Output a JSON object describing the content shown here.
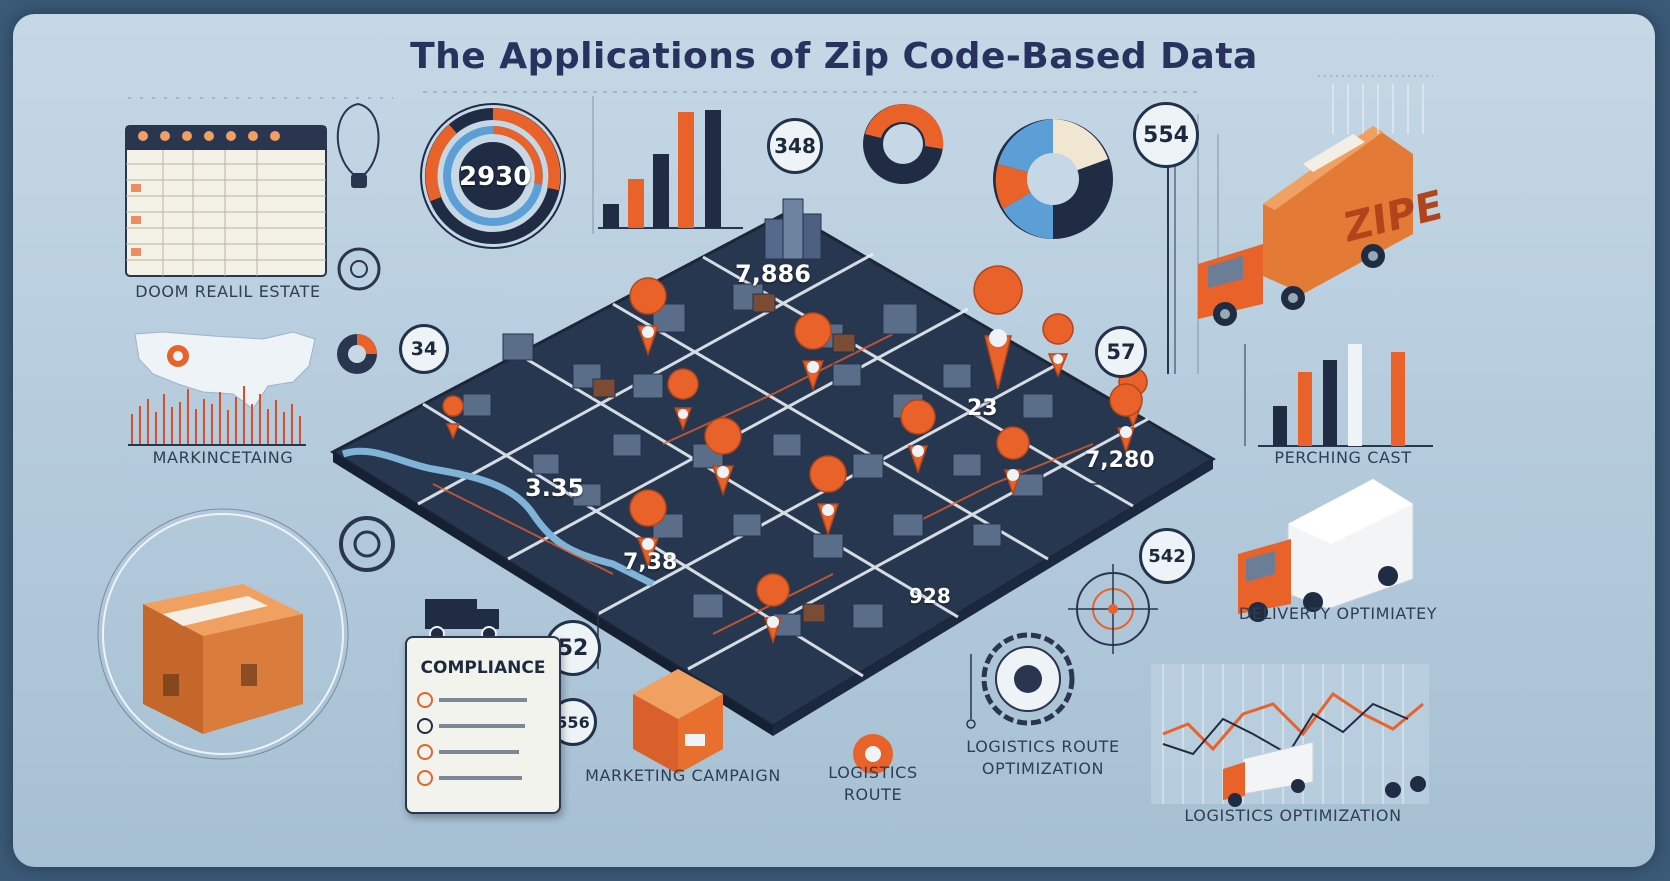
{
  "title": "The Applications of Zip Code-Based Data",
  "labels": {
    "real_estate": "DOOM REALIL ESTATE",
    "marketing": "MARKINCETAING",
    "perching": "PERCHING CAST",
    "delivery": "DELIVERTY OPTIMIATEY",
    "marketing_campaign": "MARKETING CAMPAIGN",
    "logistics_route_line1": "LOGISTICS",
    "logistics_route_line2": "ROUTE",
    "logistics_route_opt_line1": "LOGISTICS ROUTE",
    "logistics_route_opt_line2": "OPTIMIZATION",
    "logistics_optimization": "LOGISTICS OPTIMIZATION",
    "compliance": "COMPLIANCE",
    "truck_text": "ZIPE"
  },
  "map_values": {
    "top": "7,886",
    "center_right": "23",
    "left": "3.35",
    "right": "7,280",
    "bottom_left": "7,38",
    "bottom_center": "928"
  },
  "badges": {
    "donut_value": "2930",
    "b348": "348",
    "b554": "554",
    "b34": "34",
    "b57": "57",
    "b542": "542",
    "b52": "52",
    "b556": "556"
  },
  "colors": {
    "accent_orange": "#e8622a",
    "navy": "#1f2c44",
    "light_blue": "#5c9fd6",
    "background": "#bcd1e0"
  }
}
